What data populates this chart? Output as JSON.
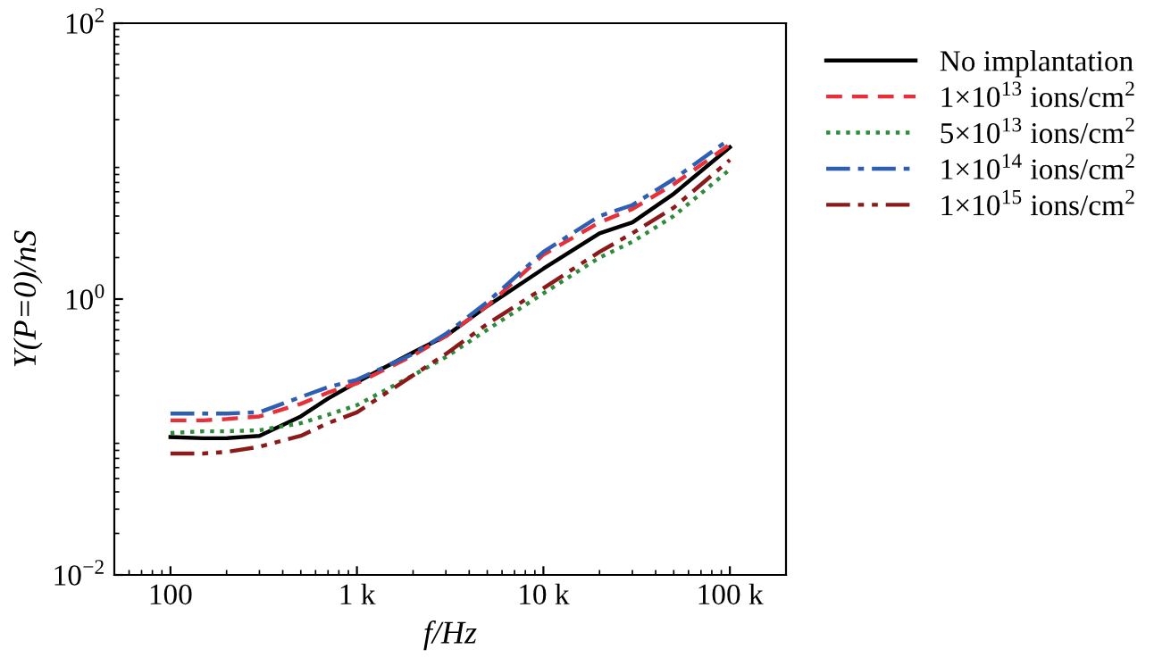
{
  "chart_data": {
    "type": "line",
    "xlabel": "f/Hz",
    "ylabel": "Y(P=0)/nS",
    "log": "xy",
    "grid": false,
    "legend": "right",
    "marker": "none",
    "x": [
      100,
      150,
      200,
      300,
      500,
      700,
      1000,
      2000,
      3000,
      5000,
      10000,
      20000,
      30000,
      50000,
      100000
    ],
    "xlim": [
      50,
      200000
    ],
    "xticks": [
      {
        "value": 100,
        "label": "100"
      },
      {
        "value": 1000,
        "label": "1 k"
      },
      {
        "value": 10000,
        "label": "10 k"
      },
      {
        "value": 100000,
        "label": "100 k"
      }
    ],
    "ylim": [
      0.01,
      100
    ],
    "yticks": [
      {
        "value": 0.01,
        "label": "10$^{−2}$"
      },
      {
        "value": 1,
        "label": "10$^{0}$"
      },
      {
        "value": 100,
        "label": "10$^{2}$"
      }
    ],
    "series": [
      {
        "name": "No implantation",
        "color": "#000000",
        "line_style": "solid",
        "values": [
          0.1,
          0.098,
          0.098,
          0.102,
          0.141,
          0.19,
          0.25,
          0.41,
          0.54,
          0.89,
          1.66,
          3.0,
          3.6,
          5.8,
          12.6
        ]
      },
      {
        "name": "1×10$^{13}$ ions/cm$^{2}$",
        "color": "#e8303a",
        "line_style": "dashed",
        "values": [
          0.132,
          0.132,
          0.135,
          0.141,
          0.174,
          0.21,
          0.245,
          0.39,
          0.54,
          0.89,
          2.1,
          3.6,
          4.5,
          6.8,
          13.2
        ]
      },
      {
        "name": "5×10$^{13}$ ions/cm$^{2}$",
        "color": "#2e8b3a",
        "line_style": "dotted",
        "values": [
          0.107,
          0.11,
          0.11,
          0.112,
          0.126,
          0.145,
          0.17,
          0.28,
          0.38,
          0.6,
          1.1,
          2.0,
          2.6,
          4.0,
          8.7
        ]
      },
      {
        "name": "1×10$^{14}$ ions/cm$^{2}$",
        "color": "#2f5fb3",
        "line_style": "dashdot",
        "values": [
          0.148,
          0.148,
          0.148,
          0.151,
          0.195,
          0.23,
          0.26,
          0.4,
          0.56,
          0.95,
          2.2,
          4.0,
          4.8,
          7.4,
          14.5
        ]
      },
      {
        "name": "1×10$^{15}$ ions/cm$^{2}$",
        "color": "#8b1a1a",
        "line_style": "dashdotdot",
        "values": [
          0.076,
          0.076,
          0.078,
          0.085,
          0.102,
          0.126,
          0.151,
          0.28,
          0.4,
          0.66,
          1.2,
          2.2,
          3.0,
          4.6,
          10.2
        ]
      }
    ]
  }
}
